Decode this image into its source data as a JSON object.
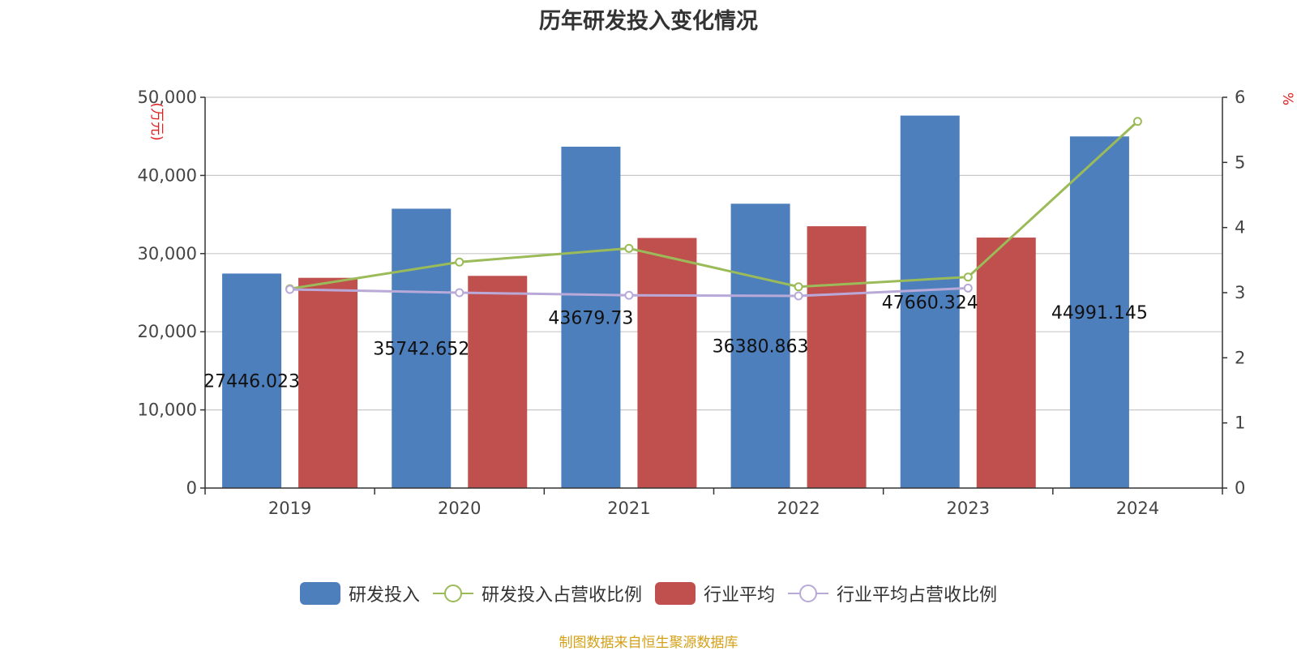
{
  "chart_data": {
    "type": "bar",
    "title": "历年研发投入变化情况",
    "categories": [
      "2019",
      "2020",
      "2021",
      "2022",
      "2023",
      "2024"
    ],
    "y_left": {
      "unit": "万元",
      "range": [
        0,
        50000
      ],
      "ticks": [
        "0",
        "10,000",
        "20,000",
        "30,000",
        "40,000",
        "50,000"
      ]
    },
    "y_right": {
      "unit": "%",
      "range": [
        0,
        6
      ],
      "ticks": [
        "0",
        "1",
        "2",
        "3",
        "4",
        "5",
        "6"
      ]
    },
    "bars": [
      {
        "name": "研发投入",
        "color": "#4e7fbd",
        "values": [
          27446.023,
          35742.652,
          43679.73,
          36380.863,
          47660.324,
          44991.145
        ],
        "labels": [
          "27446.023",
          "35742.652",
          "43679.73",
          "36380.863",
          "47660.324",
          "44991.145"
        ]
      },
      {
        "name": "行业平均",
        "color": "#c0504d",
        "values": [
          26900,
          27150,
          32000,
          33500,
          32050,
          null
        ]
      }
    ],
    "lines": [
      {
        "name": "研发投入占营收比例",
        "color": "#9bbb59",
        "axis": "right",
        "values": [
          3.06,
          3.47,
          3.68,
          3.09,
          3.24,
          5.63
        ]
      },
      {
        "name": "行业平均占营收比例",
        "color": "#b8a9d9",
        "axis": "right",
        "values": [
          3.05,
          3.0,
          2.96,
          2.95,
          3.07,
          null
        ]
      }
    ],
    "grid": true,
    "legend_position": "bottom"
  },
  "legend": {
    "items": [
      {
        "label": "研发投入",
        "kind": "bar",
        "color": "#4e7fbd"
      },
      {
        "label": "研发投入占营收比例",
        "kind": "line",
        "color": "#9bbb59"
      },
      {
        "label": "行业平均",
        "kind": "bar",
        "color": "#c0504d"
      },
      {
        "label": "行业平均占营收比例",
        "kind": "line",
        "color": "#b8a9d9"
      }
    ]
  },
  "source_note": "制图数据来自恒生聚源数据库"
}
